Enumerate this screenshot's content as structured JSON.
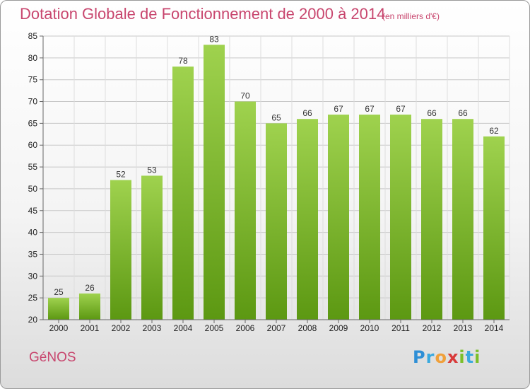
{
  "header": {
    "title": "Dotation Globale de Fonctionnement de 2000 à 2014",
    "unit_note": "(en milliers d'€)"
  },
  "footer": {
    "commune": "GéNOS",
    "logo_letters": [
      "P",
      "r",
      "o",
      "x",
      "i",
      "t",
      "i"
    ]
  },
  "colors": {
    "bar_top": "#9fd24e",
    "bar_bottom": "#5c9812",
    "title": "#c8466e",
    "grid": "#c8c8c8"
  },
  "chart_data": {
    "type": "bar",
    "title": "Dotation Globale de Fonctionnement de 2000 à 2014",
    "subtitle": "(en milliers d'€)",
    "categories": [
      "2000",
      "2001",
      "2002",
      "2003",
      "2004",
      "2005",
      "2006",
      "2007",
      "2008",
      "2009",
      "2010",
      "2011",
      "2012",
      "2013",
      "2014"
    ],
    "values": [
      25,
      26,
      52,
      53,
      78,
      83,
      70,
      65,
      66,
      67,
      67,
      67,
      66,
      66,
      62
    ],
    "ylim": [
      20,
      85
    ],
    "yticks": [
      20,
      25,
      30,
      35,
      40,
      45,
      50,
      55,
      60,
      65,
      70,
      75,
      80,
      85
    ],
    "grid": true,
    "data_labels": true
  }
}
